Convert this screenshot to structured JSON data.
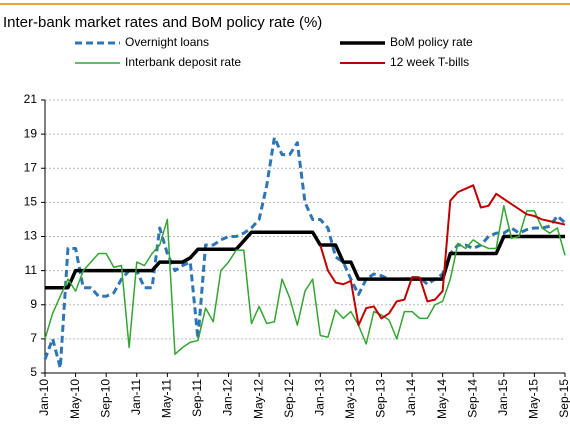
{
  "chart_data": {
    "type": "line",
    "title": "Inter-bank market rates and BoM policy rate (%)",
    "categories": [
      "Jan-10",
      null,
      null,
      null,
      "May-10",
      null,
      null,
      null,
      "Sep-10",
      null,
      null,
      null,
      "Jan-11",
      null,
      null,
      null,
      "May-11",
      null,
      null,
      null,
      "Sep-11",
      null,
      null,
      null,
      "Jan-12",
      null,
      null,
      null,
      "May-12",
      null,
      null,
      null,
      "Sep-12",
      null,
      null,
      null,
      "Jan-13",
      null,
      null,
      null,
      "May-13",
      null,
      null,
      null,
      "Sep-13",
      null,
      null,
      null,
      "Jan-14",
      null,
      null,
      null,
      "May-14",
      null,
      null,
      null,
      "Sep-14",
      null,
      null,
      null,
      "Jan-15",
      null,
      null,
      null,
      "May-15",
      null,
      null,
      null,
      "Sep-15"
    ],
    "series": [
      {
        "name": "Overnight loans",
        "color": "#2e75b6",
        "dash": true,
        "width": 3,
        "values": [
          5.8,
          7,
          5.3,
          12.3,
          12.3,
          10,
          10,
          9.5,
          9.5,
          9.7,
          10.5,
          11,
          11,
          10,
          10,
          13.5,
          12,
          11,
          11.3,
          11.5,
          7,
          12.5,
          12.5,
          12.8,
          13,
          13,
          13.2,
          13.5,
          14,
          16,
          18.8,
          17.8,
          17.8,
          18.5,
          15,
          14,
          14,
          13.5,
          11.8,
          11.5,
          10.5,
          9.6,
          10.5,
          10.8,
          10.7,
          10.5,
          10.5,
          10.5,
          10.6,
          10.6,
          10.2,
          10.5,
          10.8,
          12,
          12.5,
          12.5,
          12.3,
          12.5,
          13,
          13.2,
          13.2,
          13.5,
          13.2,
          13.4,
          13.5,
          13.5,
          13.6,
          14.2,
          13.8
        ]
      },
      {
        "name": "BoM policy rate",
        "color": "#000000",
        "dash": false,
        "width": 3.5,
        "values": [
          10,
          10,
          10,
          10,
          11,
          11,
          11,
          11,
          11,
          11,
          11,
          11,
          11,
          11,
          11,
          11.5,
          11.5,
          11.5,
          11.5,
          11.75,
          12.25,
          12.25,
          12.25,
          12.25,
          12.25,
          12.25,
          12.75,
          13.25,
          13.25,
          13.25,
          13.25,
          13.25,
          13.25,
          13.25,
          13.25,
          13.25,
          12.5,
          12.5,
          12.5,
          11.5,
          11.5,
          10.5,
          10.5,
          10.5,
          10.5,
          10.5,
          10.5,
          10.5,
          10.5,
          10.5,
          10.5,
          10.5,
          10.5,
          12,
          12,
          12,
          12,
          12,
          12,
          12,
          13,
          13,
          13,
          13,
          13,
          13,
          13,
          13,
          13
        ]
      },
      {
        "name": "Interbank deposit rate",
        "color": "#33a532",
        "dash": false,
        "width": 1.5,
        "values": [
          7,
          8.5,
          9.5,
          10.5,
          9.8,
          11,
          11.5,
          12,
          12,
          11.2,
          11.3,
          6.5,
          11.5,
          11.3,
          12,
          12.5,
          14,
          6.1,
          6.5,
          6.8,
          6.9,
          8.8,
          8,
          11,
          11.5,
          12.2,
          12.2,
          7.9,
          8.9,
          7.9,
          8,
          10.5,
          9.4,
          7.8,
          9.8,
          10.5,
          7.2,
          7.1,
          8.7,
          8.2,
          8.6,
          7.8,
          6.7,
          8.6,
          8.4,
          8.1,
          7,
          8.6,
          8.6,
          8.2,
          8.2,
          9,
          9.2,
          10.5,
          12.6,
          12.3,
          12.8,
          12.5,
          12.3,
          12.3,
          14.8,
          12.9,
          13,
          14.5,
          14.5,
          13.5,
          13.2,
          13.5,
          11.9
        ]
      },
      {
        "name": "12 week T-bills",
        "color": "#c00000",
        "dash": false,
        "width": 2,
        "values": [
          null,
          null,
          null,
          null,
          null,
          null,
          null,
          null,
          null,
          null,
          null,
          null,
          null,
          null,
          null,
          null,
          null,
          null,
          null,
          null,
          null,
          null,
          null,
          null,
          null,
          null,
          null,
          null,
          null,
          null,
          null,
          null,
          null,
          null,
          null,
          null,
          12.5,
          11,
          10.3,
          10.2,
          10.4,
          7.8,
          8.8,
          8.9,
          8.2,
          8.5,
          9.2,
          9.3,
          10.6,
          10.6,
          9.2,
          9.3,
          9.8,
          15.1,
          15.6,
          15.8,
          16,
          14.7,
          14.8,
          15.5,
          15.2,
          14.9,
          14.6,
          14.3,
          14.2,
          14,
          13.9,
          13.8,
          13.7
        ]
      }
    ],
    "ylim": [
      5,
      21
    ],
    "yticks": [
      5,
      7,
      9,
      11,
      13,
      15,
      17,
      19,
      21
    ],
    "grid": true
  }
}
